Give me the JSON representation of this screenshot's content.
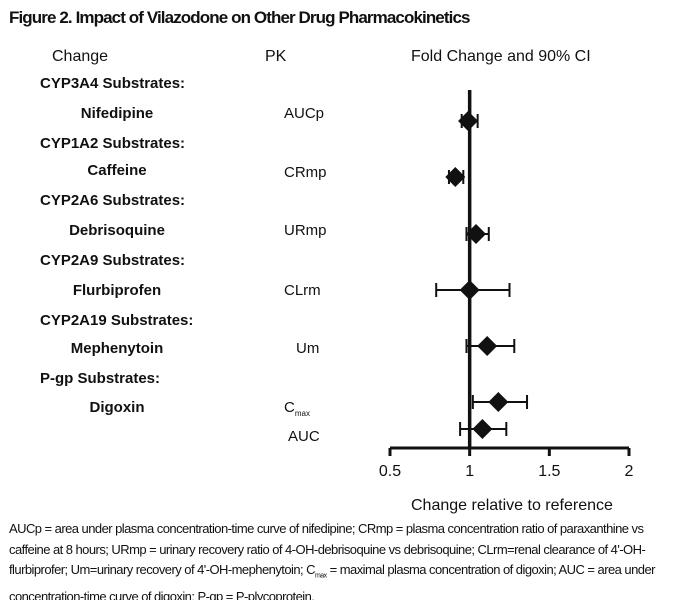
{
  "chart_data": {
    "type": "forest",
    "title": "Figure 2. Impact of Vilazodone on Other Drug Pharmacokinetics",
    "column_headers": {
      "change": "Change",
      "pk": "PK",
      "plot": "Fold Change and 90% CI"
    },
    "xlabel": "Change relative to reference",
    "xlim": [
      0.5,
      2
    ],
    "xticks": [
      "0.5",
      "1",
      "1.5",
      "2"
    ],
    "reference_line": 1,
    "groups": [
      {
        "label": "CYP3A4 Substrates:",
        "drug": "Nifedipine"
      },
      {
        "label": "CYP1A2 Substrates:",
        "drug": "Caffeine"
      },
      {
        "label": "CYP2A6 Substrates:",
        "drug": "Debrisoquine"
      },
      {
        "label": "CYP2A9 Substrates:",
        "drug": "Flurbiprofen"
      },
      {
        "label": "CYP2A19 Substrates:",
        "drug": "Mephenytoin"
      },
      {
        "label": "P-gp Substrates:",
        "drug": "Digoxin"
      }
    ],
    "rows": [
      {
        "drug": "Nifedipine",
        "pk": "AUCp",
        "estimate": 0.99,
        "ci_low": 0.95,
        "ci_high": 1.05
      },
      {
        "drug": "Caffeine",
        "pk": "CRmp",
        "estimate": 0.91,
        "ci_low": 0.87,
        "ci_high": 0.96
      },
      {
        "drug": "Debrisoquine",
        "pk": "URmp",
        "estimate": 1.04,
        "ci_low": 0.98,
        "ci_high": 1.12
      },
      {
        "drug": "Flurbiprofen",
        "pk": "CLrm",
        "estimate": 1.0,
        "ci_low": 0.79,
        "ci_high": 1.25
      },
      {
        "drug": "Mephenytoin",
        "pk": "Um",
        "estimate": 1.11,
        "ci_low": 0.98,
        "ci_high": 1.28
      },
      {
        "drug": "Digoxin",
        "pk": "C",
        "pk_sub": "max",
        "estimate": 1.18,
        "ci_low": 1.02,
        "ci_high": 1.36
      },
      {
        "drug": "Digoxin",
        "pk": "AUC",
        "estimate": 1.08,
        "ci_low": 0.94,
        "ci_high": 1.23
      }
    ]
  },
  "footnote": {
    "part1": "AUCp = area under plasma concentration-time curve of nifedipine; CRmp = plasma concentration ratio of paraxanthine vs caffeine at 8 hours; URmp = urinary recovery ratio of 4-OH-debrisoquine vs debrisoquine; CLrm=renal clearance of 4'-OH-flurbiprofer; Um=urinary recovery of 4'-OH-mephenytoin; C",
    "sub": "max",
    "part2": " = maximal plasma concentration of digoxin; AUC = area under concentration-time curve of digoxin; P-gp = P-plycoprotein."
  },
  "colors": {
    "ink": "#111111"
  }
}
